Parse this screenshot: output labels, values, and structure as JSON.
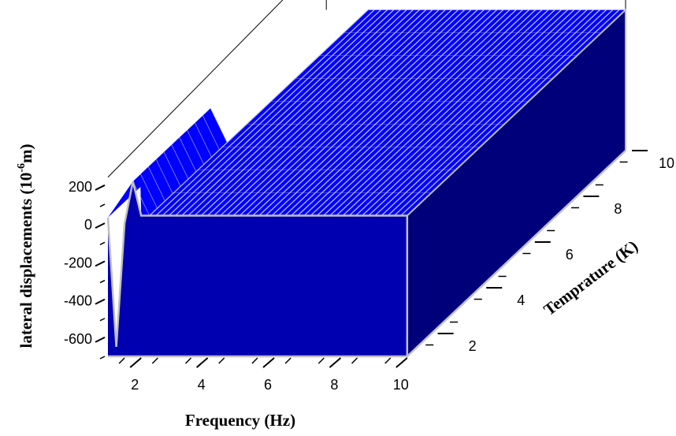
{
  "chart_data": {
    "type": "surface",
    "xlabel": "Frequency (Hz)",
    "ylabel": "Temprature (K)",
    "zlabel": {
      "prefix": "lateral displacements  (10",
      "exponent": "-6",
      "suffix": "m)"
    },
    "x_ticks": [
      2,
      4,
      6,
      8,
      10
    ],
    "y_ticks": [
      2,
      4,
      6,
      8,
      10
    ],
    "z_ticks": [
      200,
      0,
      -200,
      -400,
      -600
    ],
    "xlim": [
      1,
      10
    ],
    "ylim": [
      1,
      10
    ],
    "zlim": [
      -700,
      250
    ],
    "grid": false,
    "surface_rows": {
      "x": [
        1.0,
        1.25,
        1.5,
        1.75,
        2.0,
        2.25,
        2.5,
        3,
        4,
        5,
        6,
        7,
        8,
        9,
        10
      ],
      "z_at_low_temperature": [
        30,
        -650,
        0,
        220,
        40,
        40,
        40,
        40,
        40,
        40,
        40,
        40,
        40,
        40,
        40
      ],
      "z_at_other_temperatures": 40
    },
    "colors": {
      "surface_top": "#0000ff",
      "front_face": "#0000b0",
      "side_face": "#00007a",
      "mesh_lines": "#c8c8e8",
      "edge": "#c0c0c0"
    }
  }
}
